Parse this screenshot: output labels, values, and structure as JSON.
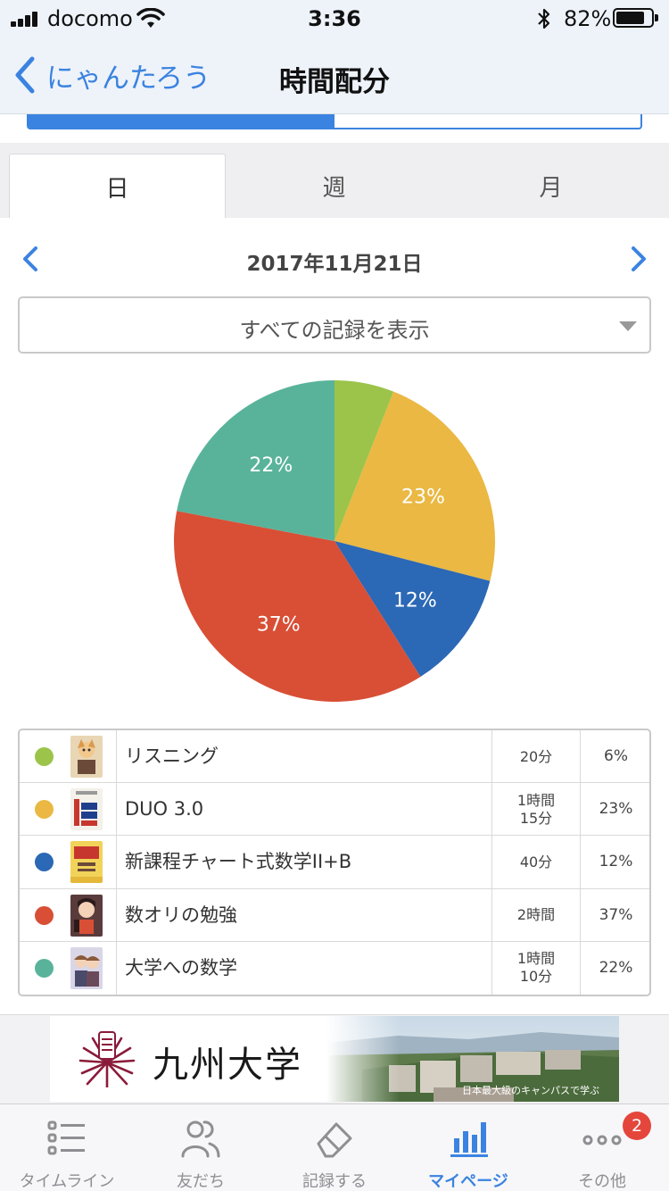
{
  "status_bar": {
    "carrier": "docomo",
    "time": "3:36",
    "battery_percent": "82%",
    "battery_level": 0.82
  },
  "nav": {
    "back_label": "にゃんたろう",
    "title": "時間配分"
  },
  "progress": {
    "value": 0.5
  },
  "tabs": [
    {
      "label": "日",
      "active": true
    },
    {
      "label": "週",
      "active": false
    },
    {
      "label": "月",
      "active": false
    }
  ],
  "date": {
    "label": "2017年11月21日"
  },
  "filter": {
    "selected": "すべての記録を表示"
  },
  "chart_data": {
    "type": "pie",
    "slices": [
      {
        "name": "リスニング",
        "value": 6,
        "color": "#9cc44a",
        "label": ""
      },
      {
        "name": "DUO 3.0",
        "value": 23,
        "color": "#eab843",
        "label": "23%"
      },
      {
        "name": "新課程チャート式数学II+B",
        "value": 12,
        "color": "#2b68b5",
        "label": "12%"
      },
      {
        "name": "数オリの勉強",
        "value": 37,
        "color": "#d84f36",
        "label": "37%"
      },
      {
        "name": "大学への数学",
        "value": 22,
        "color": "#59b39a",
        "label": "22%"
      }
    ]
  },
  "records": [
    {
      "title": "リスニング",
      "time_line1": "20分",
      "time_line2": "",
      "percent": "6%",
      "color": "#9cc44a",
      "thumb": "anime-book-cover"
    },
    {
      "title": "DUO 3.0",
      "time_line1": "1時間",
      "time_line2": "15分",
      "percent": "23%",
      "color": "#eab843",
      "thumb": "duo-book-cover"
    },
    {
      "title": "新課程チャート式数学II+B",
      "time_line1": "40分",
      "time_line2": "",
      "percent": "12%",
      "color": "#2b68b5",
      "thumb": "chart-math-book-cover"
    },
    {
      "title": "数オリの勉強",
      "time_line1": "2時間",
      "time_line2": "",
      "percent": "37%",
      "color": "#d84f36",
      "thumb": "anime-girl-cover"
    },
    {
      "title": "大学への数学",
      "time_line1": "1時間",
      "time_line2": "10分",
      "percent": "22%",
      "color": "#59b39a",
      "thumb": "anime-duo-cover"
    }
  ],
  "ad": {
    "name": "九州大学",
    "tagline": "日本最大級のキャンパスで学ぶ"
  },
  "tab_bar": [
    {
      "label": "タイムライン",
      "icon": "list-icon",
      "active": false
    },
    {
      "label": "友だち",
      "icon": "friends-icon",
      "active": false
    },
    {
      "label": "記録する",
      "icon": "eraser-icon",
      "active": false
    },
    {
      "label": "マイページ",
      "icon": "bar-chart-icon",
      "active": true
    },
    {
      "label": "その他",
      "icon": "more-icon",
      "active": false,
      "badge": "2"
    }
  ]
}
